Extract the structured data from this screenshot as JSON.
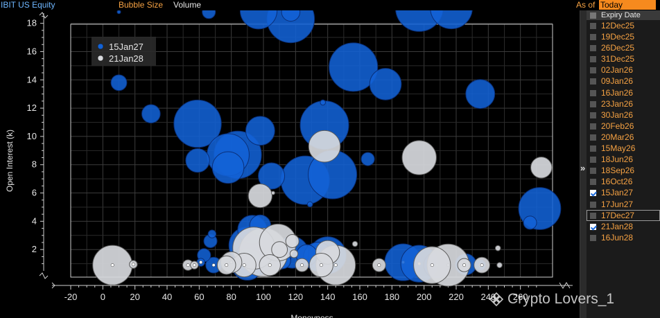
{
  "header": {
    "ticker": "IBIT US Equity",
    "bubble_size_label": "Bubble Size",
    "bubble_size_value": "Volume",
    "as_of_label": "As of",
    "as_of_value": "Today"
  },
  "expiry_panel": {
    "header": "Expiry Date",
    "expander": "»",
    "items": [
      {
        "label": "12Dec25",
        "checked": false
      },
      {
        "label": "19Dec25",
        "checked": false
      },
      {
        "label": "26Dec25",
        "checked": false
      },
      {
        "label": "31Dec25",
        "checked": false
      },
      {
        "label": "02Jan26",
        "checked": false
      },
      {
        "label": "09Jan26",
        "checked": false
      },
      {
        "label": "16Jan26",
        "checked": false
      },
      {
        "label": "23Jan26",
        "checked": false
      },
      {
        "label": "30Jan26",
        "checked": false
      },
      {
        "label": "20Feb26",
        "checked": false
      },
      {
        "label": "20Mar26",
        "checked": false
      },
      {
        "label": "15May26",
        "checked": false
      },
      {
        "label": "18Jun26",
        "checked": false
      },
      {
        "label": "18Sep26",
        "checked": false
      },
      {
        "label": "16Oct26",
        "checked": false
      },
      {
        "label": "15Jan27",
        "checked": true
      },
      {
        "label": "17Jun27",
        "checked": false
      },
      {
        "label": "17Dec27",
        "checked": false
      },
      {
        "label": "21Jan28",
        "checked": true
      },
      {
        "label": "16Jun28",
        "checked": false
      }
    ]
  },
  "watermark": "Crypto Lovers_1",
  "chart_data": {
    "type": "scatter",
    "xlabel": "Moneyness",
    "ylabel": "Open Interest (k)",
    "xlim": [
      -20,
      280
    ],
    "ylim": [
      0,
      19
    ],
    "x_ticks": [
      "-20",
      "0",
      "20",
      "40",
      "60",
      "80",
      "100",
      "120",
      "140",
      "160",
      "180",
      "200",
      "220",
      "240",
      "260"
    ],
    "y_ticks": [
      "2",
      "4",
      "6",
      "8",
      "10",
      "12",
      "14",
      "16",
      "18"
    ],
    "grid": true,
    "legend_position": "top-left",
    "series": [
      {
        "name": "15Jan27",
        "color": "#1262d6",
        "points": [
          {
            "x": 10,
            "y": 18.8,
            "size": 1
          },
          {
            "x": 66,
            "y": 18.8,
            "size": 5
          },
          {
            "x": 97,
            "y": 18.9,
            "size": 14
          },
          {
            "x": 117,
            "y": 18.3,
            "size": 18
          },
          {
            "x": 117,
            "y": 18.8,
            "size": 7
          },
          {
            "x": 197,
            "y": 19.1,
            "size": 18
          },
          {
            "x": 217,
            "y": 19.1,
            "size": 16
          },
          {
            "x": 10,
            "y": 13.8,
            "size": 6
          },
          {
            "x": 30,
            "y": 11.6,
            "size": 7
          },
          {
            "x": 59,
            "y": 10.9,
            "size": 18
          },
          {
            "x": 59,
            "y": 8.3,
            "size": 9
          },
          {
            "x": 78,
            "y": 8.7,
            "size": 16
          },
          {
            "x": 84,
            "y": 8.7,
            "size": 18
          },
          {
            "x": 78,
            "y": 7.8,
            "size": 12
          },
          {
            "x": 98,
            "y": 10.4,
            "size": 11
          },
          {
            "x": 105,
            "y": 7.2,
            "size": 10
          },
          {
            "x": 137,
            "y": 12.4,
            "size": 2
          },
          {
            "x": 138,
            "y": 10.8,
            "size": 19
          },
          {
            "x": 126,
            "y": 6.9,
            "size": 19
          },
          {
            "x": 143,
            "y": 7.3,
            "size": 19
          },
          {
            "x": 156,
            "y": 14.9,
            "size": 19
          },
          {
            "x": 176,
            "y": 13.7,
            "size": 12
          },
          {
            "x": 165,
            "y": 8.4,
            "size": 5
          },
          {
            "x": 235,
            "y": 13.0,
            "size": 11
          },
          {
            "x": 272,
            "y": 4.9,
            "size": 16
          },
          {
            "x": 266,
            "y": 3.9,
            "size": 5
          },
          {
            "x": 129,
            "y": 5.2,
            "size": 2
          },
          {
            "x": 68,
            "y": 3.1,
            "size": 3
          },
          {
            "x": 67,
            "y": 2.6,
            "size": 5
          },
          {
            "x": 98,
            "y": 3.7,
            "size": 8
          },
          {
            "x": 93,
            "y": 3.4,
            "size": 11
          },
          {
            "x": 90,
            "y": 2.3,
            "size": 14
          },
          {
            "x": 94,
            "y": 1.4,
            "size": 14
          },
          {
            "x": 109,
            "y": 1.5,
            "size": 10
          },
          {
            "x": 118,
            "y": 1.8,
            "size": 12
          },
          {
            "x": 127,
            "y": 1.6,
            "size": 8
          },
          {
            "x": 134,
            "y": 1.5,
            "size": 11
          },
          {
            "x": 140,
            "y": 1.6,
            "size": 14
          },
          {
            "x": 112,
            "y": 1.2,
            "size": 6
          },
          {
            "x": 63,
            "y": 1.6,
            "size": 5
          },
          {
            "x": 61,
            "y": 1.1,
            "size": 3
          },
          {
            "x": 69,
            "y": 0.9,
            "size": 6
          },
          {
            "x": 83,
            "y": 0.9,
            "size": 3
          },
          {
            "x": 90,
            "y": 0.95,
            "size": 12
          },
          {
            "x": 187,
            "y": 1.1,
            "size": 14
          },
          {
            "x": 197,
            "y": 1.0,
            "size": 14
          },
          {
            "x": 208,
            "y": 0.9,
            "size": 10
          },
          {
            "x": 226,
            "y": 0.95,
            "size": 8
          },
          {
            "x": 235,
            "y": 0.9,
            "size": 4
          }
        ]
      },
      {
        "name": "21Jan28",
        "color": "#d7d9dd",
        "points": [
          {
            "x": 138,
            "y": 9.3,
            "size": 12
          },
          {
            "x": 197,
            "y": 8.5,
            "size": 13
          },
          {
            "x": 273,
            "y": 7.8,
            "size": 8
          },
          {
            "x": 98,
            "y": 5.8,
            "size": 9
          },
          {
            "x": 106,
            "y": 6.0,
            "size": 1
          },
          {
            "x": 94,
            "y": 2.1,
            "size": 16
          },
          {
            "x": 100,
            "y": 1.8,
            "size": 19
          },
          {
            "x": 109,
            "y": 2.5,
            "size": 14
          },
          {
            "x": 110,
            "y": 2.0,
            "size": 6
          },
          {
            "x": 118,
            "y": 2.6,
            "size": 5
          },
          {
            "x": 119,
            "y": 1.7,
            "size": 3
          },
          {
            "x": 140,
            "y": 1.8,
            "size": 9
          },
          {
            "x": 157,
            "y": 2.4,
            "size": 2
          },
          {
            "x": 246,
            "y": 2.1,
            "size": 2
          },
          {
            "x": 6,
            "y": 0.9,
            "size": 15
          },
          {
            "x": 19,
            "y": 0.95,
            "size": 3
          },
          {
            "x": 53,
            "y": 0.9,
            "size": 4
          },
          {
            "x": 57,
            "y": 0.9,
            "size": 3
          },
          {
            "x": 77,
            "y": 0.9,
            "size": 7
          },
          {
            "x": 80,
            "y": 1.1,
            "size": 8
          },
          {
            "x": 88,
            "y": 0.9,
            "size": 9
          },
          {
            "x": 104,
            "y": 0.9,
            "size": 8
          },
          {
            "x": 124,
            "y": 0.9,
            "size": 5
          },
          {
            "x": 136,
            "y": 0.9,
            "size": 9
          },
          {
            "x": 145,
            "y": 0.9,
            "size": 15
          },
          {
            "x": 172,
            "y": 0.9,
            "size": 5
          },
          {
            "x": 205,
            "y": 0.9,
            "size": 14
          },
          {
            "x": 215,
            "y": 0.9,
            "size": 16
          },
          {
            "x": 225,
            "y": 0.9,
            "size": 5
          },
          {
            "x": 236,
            "y": 0.9,
            "size": 6
          },
          {
            "x": 247,
            "y": 0.9,
            "size": 2
          }
        ]
      }
    ]
  }
}
